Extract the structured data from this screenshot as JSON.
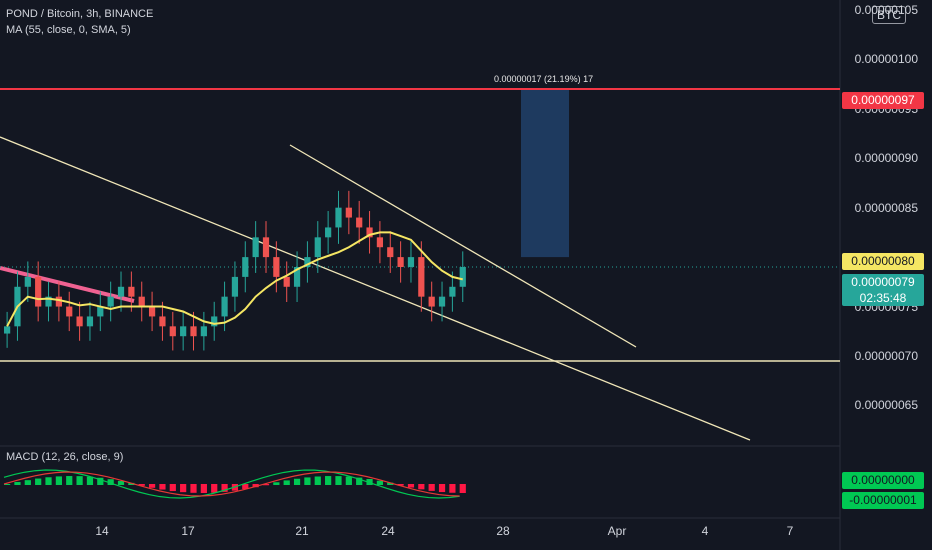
{
  "header": {
    "symbol_line": "POND / Bitcoin, 3h, BINANCE",
    "ma_line": "MA (55, close, 0, SMA, 5)",
    "currency": "BTC"
  },
  "macd": {
    "label": "MACD (12, 26, close, 9)",
    "value1": "0.00000000",
    "value2": "-0.00000001"
  },
  "price_axis": {
    "labels": [
      "0.00000105",
      "0.00000100",
      "0.00000095",
      "0.00000090",
      "0.00000085",
      "0.00000075",
      "0.00000070",
      "0.00000065"
    ],
    "top_label": "0.00000105"
  },
  "tags": {
    "target": "0.00000097",
    "ma_value": "0.00000080",
    "last_price": "0.00000079",
    "countdown": "02:35:48"
  },
  "annotation": "0.00000017 (21.19%) 17",
  "time_axis": [
    "14",
    "17",
    "21",
    "24",
    "28",
    "Apr",
    "4",
    "7"
  ],
  "colors": {
    "up": "#26a69a",
    "down": "#ef5350",
    "ma": "#f5e663",
    "target_line": "#f23645",
    "trend": "#f0e6b8",
    "macd_line": "#00c853",
    "signal_line": "#e53935",
    "box": "#1e3a5f"
  },
  "chart_data": {
    "type": "candlestick",
    "price_scale": {
      "min": 6.1e-07,
      "max": 1.06e-06
    },
    "target_price": 9.7e-07,
    "support_price": 6.95e-07,
    "last_price": 7.9e-07,
    "ma_last": 8e-07,
    "closes": [
      7.3e-07,
      7.7e-07,
      7.8e-07,
      7.5e-07,
      7.6e-07,
      7.5e-07,
      7.4e-07,
      7.3e-07,
      7.4e-07,
      7.5e-07,
      7.6e-07,
      7.7e-07,
      7.6e-07,
      7.5e-07,
      7.4e-07,
      7.3e-07,
      7.2e-07,
      7.3e-07,
      7.2e-07,
      7.3e-07,
      7.4e-07,
      7.6e-07,
      7.8e-07,
      8e-07,
      8.2e-07,
      8e-07,
      7.8e-07,
      7.7e-07,
      7.9e-07,
      8e-07,
      8.2e-07,
      8.3e-07,
      8.5e-07,
      8.4e-07,
      8.3e-07,
      8.2e-07,
      8.1e-07,
      8e-07,
      7.9e-07,
      8e-07,
      7.6e-07,
      7.5e-07,
      7.6e-07,
      7.7e-07,
      7.9e-07
    ]
  }
}
